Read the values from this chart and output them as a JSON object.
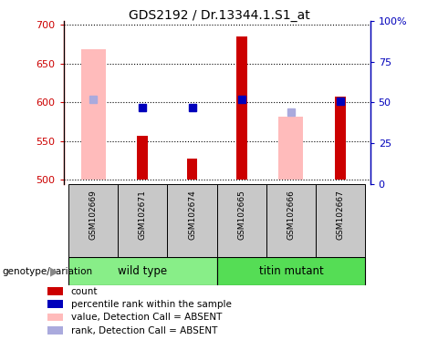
{
  "title": "GDS2192 / Dr.13344.1.S1_at",
  "samples": [
    "GSM102669",
    "GSM102671",
    "GSM102674",
    "GSM102665",
    "GSM102666",
    "GSM102667"
  ],
  "ylim_left": [
    495,
    705
  ],
  "ylim_right": [
    0,
    100
  ],
  "yticks_left": [
    500,
    550,
    600,
    650,
    700
  ],
  "yticks_right": [
    0,
    25,
    50,
    75,
    100
  ],
  "count_values": [
    null,
    557,
    527,
    685,
    null,
    607
  ],
  "count_base": 500,
  "percentile_rank_values": [
    null,
    593,
    593,
    604,
    null,
    602
  ],
  "value_absent": [
    669,
    null,
    null,
    null,
    582,
    null
  ],
  "rank_absent": [
    604,
    null,
    null,
    null,
    588,
    null
  ],
  "count_color": "#cc0000",
  "percentile_color": "#0000bb",
  "value_absent_color": "#ffbbbb",
  "rank_absent_color": "#aaaadd",
  "group_wt_color": "#88ee88",
  "group_tm_color": "#55dd55",
  "xlabel_color": "#cc0000",
  "right_axis_color": "#0000bb",
  "bg_color": "#c8c8c8",
  "plot_bg": "#ffffff",
  "legend_items": [
    {
      "color": "#cc0000",
      "label": "count"
    },
    {
      "color": "#0000bb",
      "label": "percentile rank within the sample"
    },
    {
      "color": "#ffbbbb",
      "label": "value, Detection Call = ABSENT"
    },
    {
      "color": "#aaaadd",
      "label": "rank, Detection Call = ABSENT"
    }
  ]
}
